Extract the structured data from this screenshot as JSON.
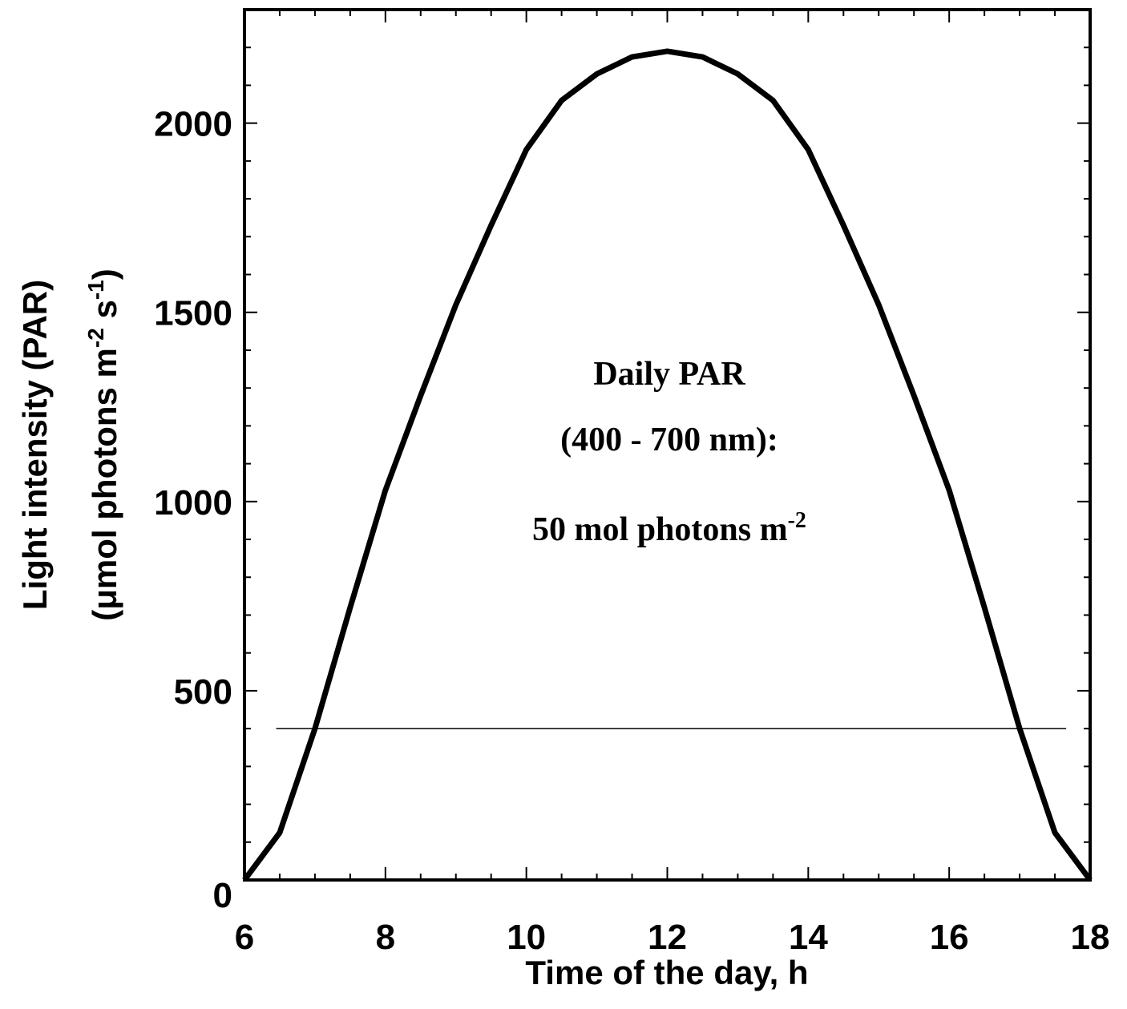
{
  "chart_data": {
    "type": "line",
    "title": null,
    "xlabel": "Time of the day, h",
    "ylabel": {
      "line1": "Light intensity (PAR)",
      "line2": [
        "(μmol photons m",
        "-2",
        " s",
        "-1",
        ")"
      ]
    },
    "annotation": {
      "line1": "Daily PAR",
      "line2": "(400 - 700 nm):",
      "line3": [
        "50 mol photons m",
        "-2"
      ]
    },
    "x": [
      6,
      6.5,
      7,
      7.5,
      8,
      8.5,
      9,
      9.5,
      10,
      10.5,
      11,
      11.5,
      12,
      12.5,
      13,
      13.5,
      14,
      14.5,
      15,
      15.5,
      16,
      16.5,
      17,
      17.5,
      18
    ],
    "series": [
      {
        "name": "PAR",
        "color": "#000000",
        "values": [
          0,
          125,
          400,
          720,
          1030,
          1280,
          1520,
          1730,
          1930,
          2060,
          2130,
          2175,
          2190,
          2175,
          2130,
          2060,
          1930,
          1730,
          1520,
          1280,
          1030,
          720,
          400,
          125,
          0
        ]
      }
    ],
    "hline": {
      "y": 400,
      "xmin": 6.45,
      "xmax": 17.66,
      "color": "#000000"
    },
    "xlim": [
      6,
      18
    ],
    "xticks": [
      6,
      8,
      10,
      12,
      14,
      16,
      18
    ],
    "xminorticks": [
      6.5,
      7,
      7.5,
      8.5,
      9,
      9.5,
      10.5,
      11,
      11.5,
      12.5,
      13,
      13.5,
      14.5,
      15,
      15.5,
      16.5,
      17,
      17.5
    ],
    "ylim": [
      0,
      2300
    ],
    "yticks": [
      0,
      500,
      1000,
      1500,
      2000
    ],
    "yminorticks": [
      100,
      200,
      300,
      400,
      600,
      700,
      800,
      900,
      1100,
      1200,
      1300,
      1400,
      1600,
      1700,
      1800,
      1900,
      2100,
      2200
    ],
    "grid": false
  }
}
